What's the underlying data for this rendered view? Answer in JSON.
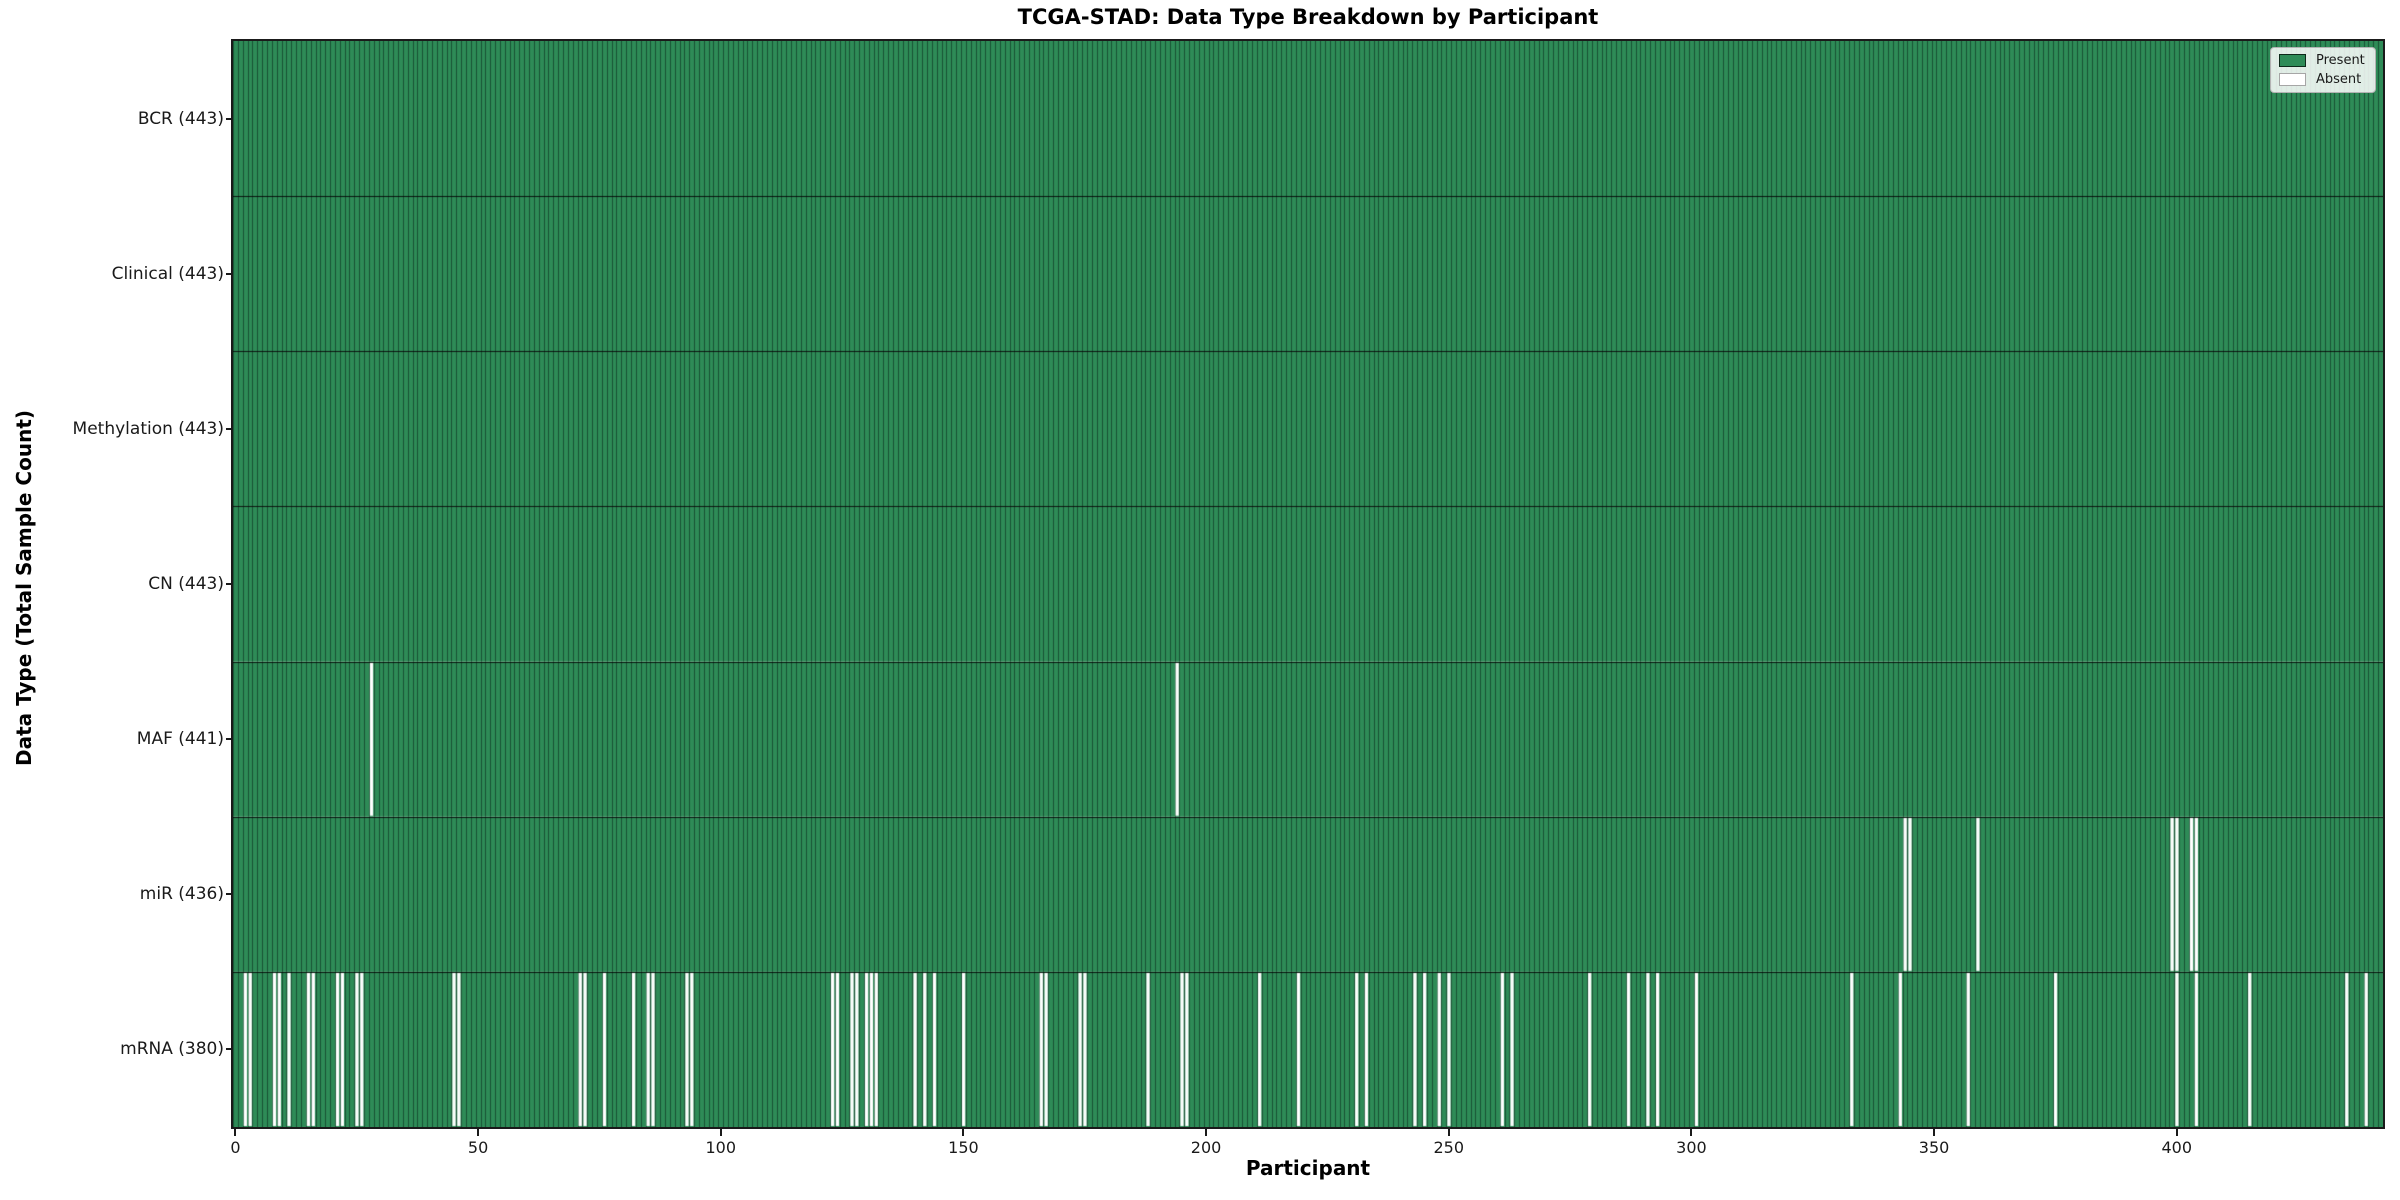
{
  "chart_data": {
    "type": "heatmap",
    "title": "TCGA-STAD: Data Type Breakdown by Participant",
    "xlabel": "Participant",
    "ylabel": "Data Type (Total Sample Count)",
    "n_participants": 443,
    "x_ticks": [
      0,
      50,
      100,
      150,
      200,
      250,
      300,
      350,
      400
    ],
    "grid": false,
    "legend_position": "upper right",
    "colors": {
      "present": "#2e8b57",
      "absent": "#ffffff",
      "bar_edge": "rgba(8,34,21,0.55)",
      "row_boundary": "rgba(0,0,0,0.85)",
      "spine": "#1a1a1a"
    },
    "legend": [
      {
        "label": "Present",
        "color": "#2e8b57"
      },
      {
        "label": "Absent",
        "color": "#ffffff"
      }
    ],
    "rows": [
      {
        "name": "BCR",
        "count": 443,
        "label": "BCR (443)",
        "absent": []
      },
      {
        "name": "Clinical",
        "count": 443,
        "label": "Clinical (443)",
        "absent": []
      },
      {
        "name": "Methylation",
        "count": 443,
        "label": "Methylation (443)",
        "absent": []
      },
      {
        "name": "CN",
        "count": 443,
        "label": "CN (443)",
        "absent": []
      },
      {
        "name": "MAF",
        "count": 441,
        "label": "MAF (441)",
        "absent": [
          28,
          194
        ]
      },
      {
        "name": "miR",
        "count": 436,
        "label": "miR (436)",
        "absent": [
          344,
          345,
          359,
          399,
          400,
          403,
          404
        ]
      },
      {
        "name": "mRNA",
        "count": 380,
        "label": "mRNA (380)",
        "absent": [
          2,
          3,
          8,
          9,
          11,
          15,
          16,
          21,
          22,
          25,
          26,
          45,
          46,
          71,
          72,
          76,
          82,
          85,
          86,
          93,
          94,
          123,
          124,
          127,
          128,
          130,
          131,
          132,
          140,
          142,
          144,
          150,
          166,
          167,
          174,
          175,
          188,
          195,
          196,
          211,
          219,
          231,
          233,
          243,
          245,
          248,
          250,
          261,
          263,
          279,
          287,
          291,
          293,
          301,
          333,
          343,
          357,
          375,
          400,
          404,
          415,
          435,
          439
        ]
      }
    ]
  }
}
